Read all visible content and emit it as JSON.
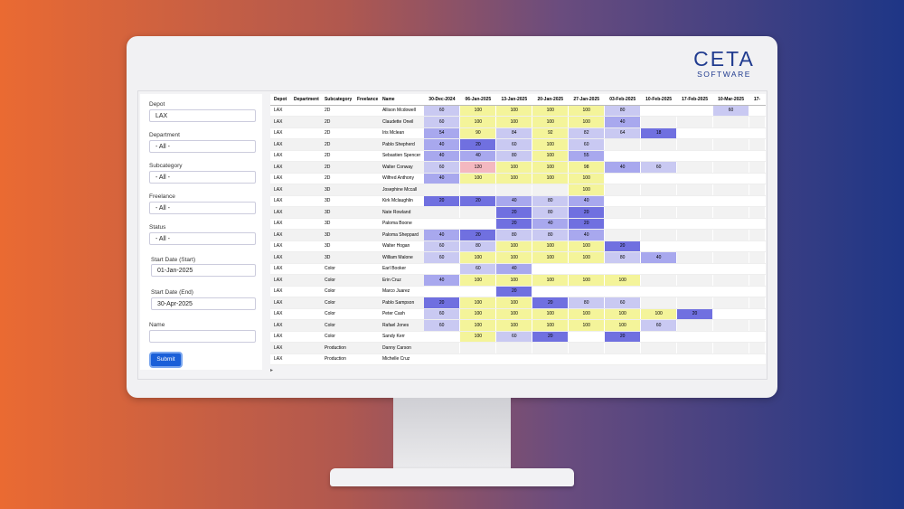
{
  "brand": {
    "main": "CETA",
    "sub": "SOFTWARE"
  },
  "filters": {
    "depot": {
      "label": "Depot",
      "value": "LAX"
    },
    "department": {
      "label": "Department",
      "value": "- All -"
    },
    "subcategory": {
      "label": "Subcategory",
      "value": "- All -"
    },
    "freelance": {
      "label": "Freelance",
      "value": "- All -"
    },
    "status": {
      "label": "Status",
      "value": "- All -"
    },
    "start_date": {
      "label": "Start Date (Start)",
      "value": "01-Jan-2025"
    },
    "end_date": {
      "label": "Start Date (End)",
      "value": "30-Apr-2025"
    },
    "name": {
      "label": "Name",
      "value": ""
    },
    "submit_label": "Submit"
  },
  "grid": {
    "columns": [
      "Depot",
      "Department",
      "Subcategory",
      "Freelance",
      "Name"
    ],
    "weeks": [
      "30-Dec-2024",
      "06-Jan-2025",
      "13-Jan-2025",
      "20-Jan-2025",
      "27-Jan-2025",
      "03-Feb-2025",
      "10-Feb-2025",
      "17-Feb-2025",
      "10-Mar-2025",
      "17-"
    ],
    "colors": {
      "yellow": "#f4f49a",
      "light_purple": "#c9c9f2",
      "mid_purple": "#a8a8ee",
      "dark_purple": "#7070e0",
      "pink": "#f4b8c0"
    },
    "rows": [
      {
        "depot": "LAX",
        "department": "",
        "subcategory": "2D",
        "freelance": "",
        "name": "Allison Mcdowell",
        "cells": [
          "60",
          "100",
          "100",
          "100",
          "100",
          "80",
          "",
          "",
          "60",
          ""
        ]
      },
      {
        "depot": "LAX",
        "department": "",
        "subcategory": "2D",
        "freelance": "",
        "name": "Claudette Oneil",
        "cells": [
          "60",
          "100",
          "100",
          "100",
          "100",
          "40",
          "",
          "",
          "",
          ""
        ]
      },
      {
        "depot": "LAX",
        "department": "",
        "subcategory": "2D",
        "freelance": "",
        "name": "Iris Mclean",
        "cells": [
          "54",
          "90",
          "84",
          "92",
          "82",
          "64",
          "18",
          "",
          "",
          ""
        ]
      },
      {
        "depot": "LAX",
        "department": "",
        "subcategory": "2D",
        "freelance": "",
        "name": "Pablo Shepherd",
        "cells": [
          "40",
          "20",
          "60",
          "100",
          "60",
          "",
          "",
          "",
          "",
          ""
        ]
      },
      {
        "depot": "LAX",
        "department": "",
        "subcategory": "2D",
        "freelance": "",
        "name": "Sebastien Spencer",
        "cells": [
          "40",
          "40",
          "80",
          "100",
          "55",
          "",
          "",
          "",
          "",
          ""
        ]
      },
      {
        "depot": "LAX",
        "department": "",
        "subcategory": "2D",
        "freelance": "",
        "name": "Walter Conway",
        "cells": [
          "60",
          "120",
          "100",
          "100",
          "98",
          "40",
          "60",
          "",
          "",
          ""
        ]
      },
      {
        "depot": "LAX",
        "department": "",
        "subcategory": "2D",
        "freelance": "",
        "name": "Wilfred Anthony",
        "cells": [
          "40",
          "100",
          "100",
          "100",
          "100",
          "",
          "",
          "",
          "",
          ""
        ]
      },
      {
        "depot": "LAX",
        "department": "",
        "subcategory": "3D",
        "freelance": "",
        "name": "Josephine Mccall",
        "cells": [
          "",
          "",
          "",
          "",
          "100",
          "",
          "",
          "",
          "",
          ""
        ]
      },
      {
        "depot": "LAX",
        "department": "",
        "subcategory": "3D",
        "freelance": "",
        "name": "Kirk Mclaughlin",
        "cells": [
          "20",
          "20",
          "40",
          "80",
          "40",
          "",
          "",
          "",
          "",
          ""
        ]
      },
      {
        "depot": "LAX",
        "department": "",
        "subcategory": "3D",
        "freelance": "",
        "name": "Nate Rowland",
        "cells": [
          "",
          "",
          "20",
          "80",
          "20",
          "",
          "",
          "",
          "",
          ""
        ]
      },
      {
        "depot": "LAX",
        "department": "",
        "subcategory": "3D",
        "freelance": "",
        "name": "Paloma Boone",
        "cells": [
          "",
          "",
          "20",
          "40",
          "20",
          "",
          "",
          "",
          "",
          ""
        ]
      },
      {
        "depot": "LAX",
        "department": "",
        "subcategory": "3D",
        "freelance": "",
        "name": "Paloma Sheppard",
        "cells": [
          "40",
          "20",
          "80",
          "80",
          "40",
          "",
          "",
          "",
          "",
          ""
        ]
      },
      {
        "depot": "LAX",
        "department": "",
        "subcategory": "3D",
        "freelance": "",
        "name": "Walter Hogan",
        "cells": [
          "60",
          "80",
          "100",
          "100",
          "100",
          "20",
          "",
          "",
          "",
          ""
        ]
      },
      {
        "depot": "LAX",
        "department": "",
        "subcategory": "3D",
        "freelance": "",
        "name": "William Malone",
        "cells": [
          "60",
          "100",
          "100",
          "100",
          "100",
          "80",
          "40",
          "",
          "",
          ""
        ]
      },
      {
        "depot": "LAX",
        "department": "",
        "subcategory": "Color",
        "freelance": "",
        "name": "Earl Booker",
        "cells": [
          "",
          "60",
          "40",
          "",
          "",
          "",
          "",
          "",
          "",
          ""
        ]
      },
      {
        "depot": "LAX",
        "department": "",
        "subcategory": "Color",
        "freelance": "",
        "name": "Erin Cruz",
        "cells": [
          "40",
          "100",
          "100",
          "100",
          "100",
          "100",
          "",
          "",
          "",
          ""
        ]
      },
      {
        "depot": "LAX",
        "department": "",
        "subcategory": "Color",
        "freelance": "",
        "name": "Marco Juarez",
        "cells": [
          "",
          "",
          "20",
          "",
          "",
          "",
          "",
          "",
          "",
          ""
        ]
      },
      {
        "depot": "LAX",
        "department": "",
        "subcategory": "Color",
        "freelance": "",
        "name": "Pablo Sampson",
        "cells": [
          "20",
          "100",
          "100",
          "20",
          "80",
          "60",
          "",
          "",
          "",
          ""
        ]
      },
      {
        "depot": "LAX",
        "department": "",
        "subcategory": "Color",
        "freelance": "",
        "name": "Peter Cash",
        "cells": [
          "60",
          "100",
          "100",
          "100",
          "100",
          "100",
          "100",
          "20",
          "",
          ""
        ]
      },
      {
        "depot": "LAX",
        "department": "",
        "subcategory": "Color",
        "freelance": "",
        "name": "Rafael Jones",
        "cells": [
          "60",
          "100",
          "100",
          "100",
          "100",
          "100",
          "60",
          "",
          "",
          ""
        ]
      },
      {
        "depot": "LAX",
        "department": "",
        "subcategory": "Color",
        "freelance": "",
        "name": "Sandy Kerr",
        "cells": [
          "",
          "100",
          "60",
          "20",
          "",
          "20",
          "",
          "",
          "",
          ""
        ]
      },
      {
        "depot": "LAX",
        "department": "",
        "subcategory": "Production",
        "freelance": "",
        "name": "Danny Carson",
        "cells": [
          "",
          "",
          "",
          "",
          "",
          "",
          "",
          "",
          "",
          ""
        ]
      },
      {
        "depot": "LAX",
        "department": "",
        "subcategory": "Production",
        "freelance": "",
        "name": "Michelle Cruz",
        "cells": [
          "",
          "",
          "",
          "",
          "",
          "",
          "",
          "",
          "",
          ""
        ]
      }
    ]
  }
}
